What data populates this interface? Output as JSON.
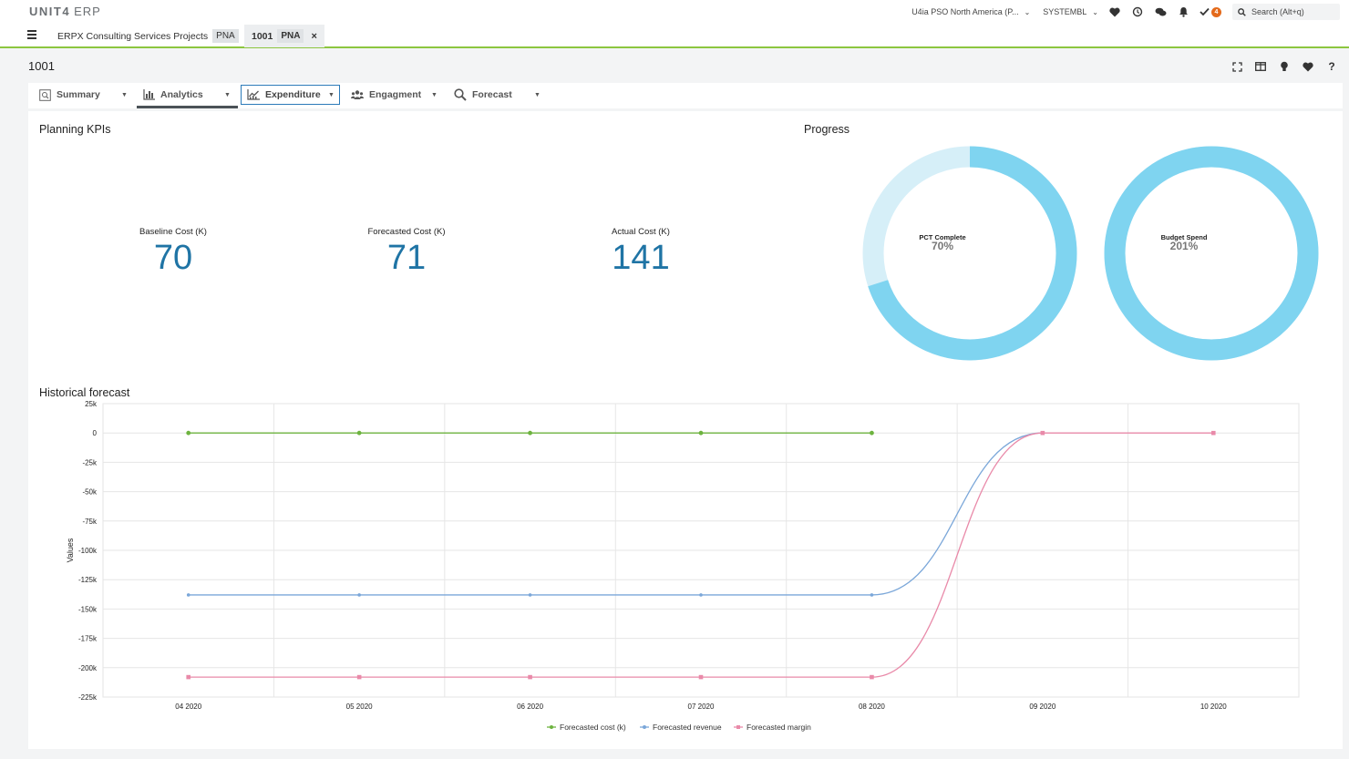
{
  "app": {
    "brand": "UNIT4",
    "product": "ERP"
  },
  "topbar": {
    "company": "U4ia PSO North America (P...",
    "user": "SYSTEMBL",
    "tasks_count": "4",
    "search_placeholder": "Search (Alt+q)"
  },
  "doc_tabs": [
    {
      "label": "ERPX Consulting Services Projects",
      "badge": "PNA"
    },
    {
      "label": "1001",
      "badge": "PNA"
    }
  ],
  "page": {
    "title": "1001"
  },
  "tool_tabs": [
    {
      "label": "Summary"
    },
    {
      "label": "Analytics"
    },
    {
      "label": "Expenditure"
    },
    {
      "label": "Engagment"
    },
    {
      "label": "Forecast"
    }
  ],
  "planning": {
    "title": "Planning KPIs",
    "kpis": [
      {
        "label": "Baseline Cost (K)",
        "value": "70"
      },
      {
        "label": "Forecasted Cost (K)",
        "value": "71"
      },
      {
        "label": "Actual Cost (K)",
        "value": "141"
      }
    ]
  },
  "progress": {
    "title": "Progress",
    "donuts": [
      {
        "label": "PCT Complete",
        "value_text": "70%",
        "fraction": 0.7
      },
      {
        "label": "Budget Spend",
        "value_text": "201%",
        "fraction": 1.0
      }
    ],
    "colors": {
      "fill": "#7fd4f0",
      "track": "#d6eff8"
    }
  },
  "historical": {
    "title": "Historical forecast"
  },
  "chart_data": {
    "type": "line",
    "title": "Historical forecast",
    "xlabel": "",
    "ylabel": "Values",
    "categories": [
      "04 2020",
      "05 2020",
      "06 2020",
      "07 2020",
      "08 2020",
      "09 2020",
      "10 2020"
    ],
    "ylim": [
      -225000,
      25000
    ],
    "yticks": [
      25000,
      0,
      -25000,
      -50000,
      -75000,
      -100000,
      -125000,
      -150000,
      -175000,
      -200000,
      -225000
    ],
    "ytick_labels": [
      "25k",
      "0",
      "-25k",
      "-50k",
      "-75k",
      "-100k",
      "-125k",
      "-150k",
      "-175k",
      "-200k",
      "-225k"
    ],
    "grid": true,
    "legend_position": "bottom",
    "series": [
      {
        "name": "Forecasted cost (k)",
        "color": "#6db33f",
        "values": [
          0,
          0,
          0,
          0,
          0,
          null,
          null
        ]
      },
      {
        "name": "Forecasted revenue",
        "color": "#7ba7d9",
        "values": [
          -138000,
          -138000,
          -138000,
          -138000,
          -138000,
          0,
          null
        ]
      },
      {
        "name": "Forecasted margin",
        "color": "#e98aa9",
        "values": [
          -208000,
          -208000,
          -208000,
          -208000,
          -208000,
          0,
          0
        ]
      }
    ]
  }
}
